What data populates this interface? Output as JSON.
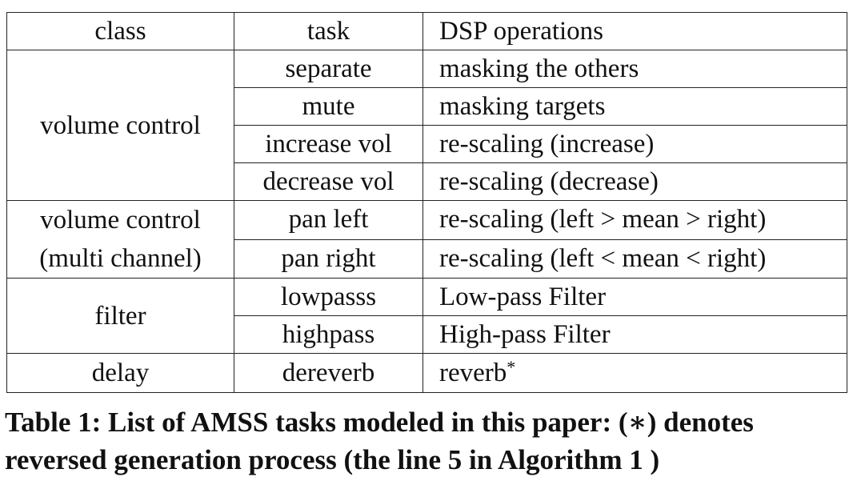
{
  "table": {
    "headers": [
      "class",
      "task",
      "DSP operations"
    ],
    "groups": [
      {
        "class_lines": [
          "volume control"
        ],
        "rows": [
          {
            "task": "separate",
            "op": "masking the others"
          },
          {
            "task": "mute",
            "op": "masking targets"
          },
          {
            "task": "increase vol",
            "op": "re-scaling (increase)"
          },
          {
            "task": "decrease vol",
            "op": "re-scaling (decrease)"
          }
        ]
      },
      {
        "class_lines": [
          "volume control",
          "(multi channel)"
        ],
        "rows": [
          {
            "task": "pan left",
            "op": "re-scaling (left > mean > right)"
          },
          {
            "task": "pan right",
            "op": "re-scaling (left < mean < right)"
          }
        ]
      },
      {
        "class_lines": [
          "filter"
        ],
        "rows": [
          {
            "task": "lowpasss",
            "op": "Low-pass Filter"
          },
          {
            "task": "highpass",
            "op": "High-pass Filter"
          }
        ]
      },
      {
        "class_lines": [
          "delay"
        ],
        "rows": [
          {
            "task": "dereverb",
            "op": "reverb",
            "op_mark": "*"
          }
        ]
      }
    ]
  },
  "caption": {
    "line1": "Table 1: List of AMSS tasks modeled in this paper: (∗) denotes",
    "line2": "reversed generation process (the line 5 in Algorithm 1 )"
  }
}
